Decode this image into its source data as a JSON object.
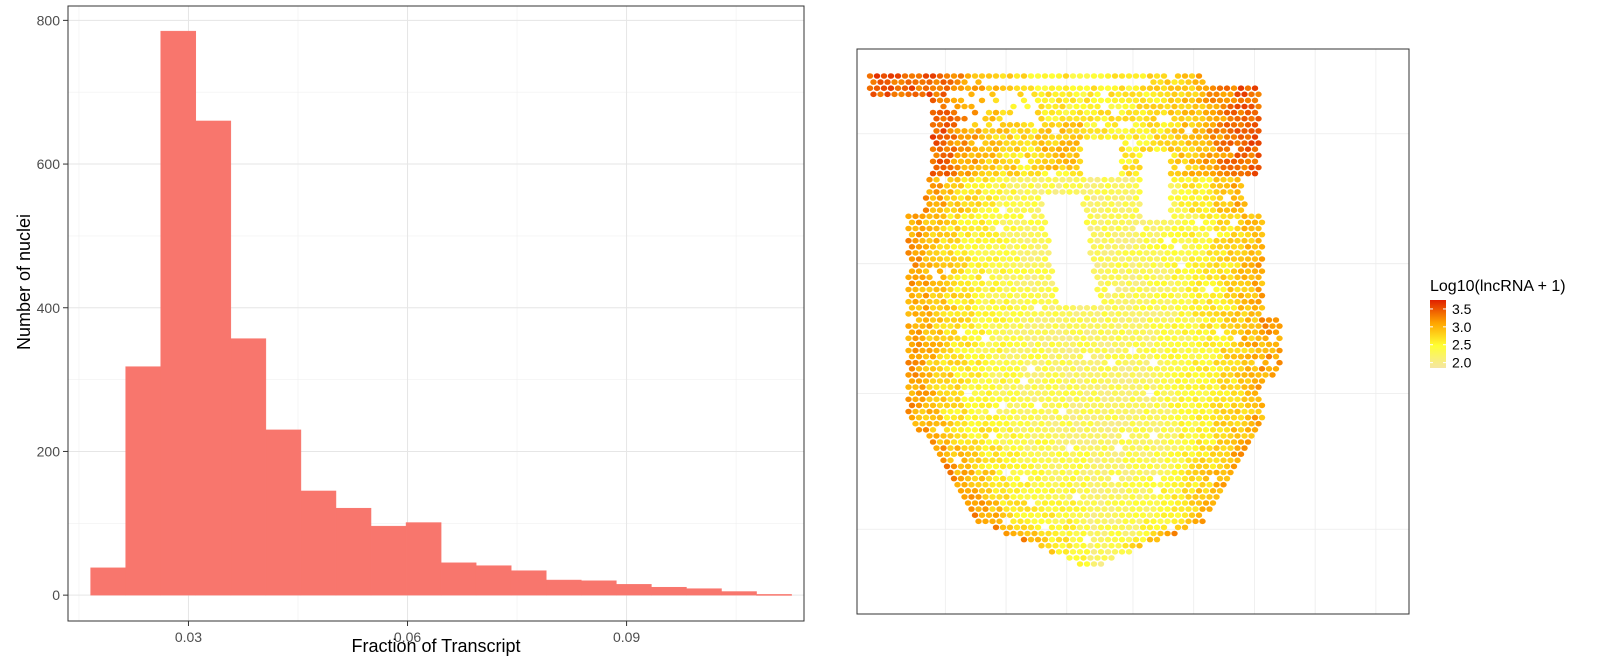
{
  "chart_data": [
    {
      "type": "bar",
      "subtype": "histogram",
      "xlabel": "Fraction of Transcript",
      "ylabel": "Number of nuclei",
      "xlim": [
        0.0135,
        0.1143
      ],
      "ylim": [
        -36,
        820
      ],
      "x_ticks": [
        0.03,
        0.06,
        0.09
      ],
      "x_tick_labels": [
        "0.03",
        "0.06",
        "0.09"
      ],
      "y_ticks": [
        0,
        200,
        400,
        600,
        800
      ],
      "y_tick_labels": [
        "0",
        "200",
        "400",
        "600",
        "800"
      ],
      "grid": true,
      "bar_color": "#F8766D",
      "bins": [
        {
          "x0": 0.0166,
          "x1": 0.0214,
          "count": 38
        },
        {
          "x0": 0.0214,
          "x1": 0.0262,
          "count": 318
        },
        {
          "x0": 0.0262,
          "x1": 0.031,
          "count": 785
        },
        {
          "x0": 0.031,
          "x1": 0.0358,
          "count": 660
        },
        {
          "x0": 0.0358,
          "x1": 0.0406,
          "count": 357
        },
        {
          "x0": 0.0406,
          "x1": 0.0454,
          "count": 230
        },
        {
          "x0": 0.0454,
          "x1": 0.0502,
          "count": 145
        },
        {
          "x0": 0.0502,
          "x1": 0.055,
          "count": 121
        },
        {
          "x0": 0.055,
          "x1": 0.0598,
          "count": 96
        },
        {
          "x0": 0.0598,
          "x1": 0.0646,
          "count": 101
        },
        {
          "x0": 0.0646,
          "x1": 0.0694,
          "count": 45
        },
        {
          "x0": 0.0694,
          "x1": 0.0742,
          "count": 41
        },
        {
          "x0": 0.0742,
          "x1": 0.079,
          "count": 34
        },
        {
          "x0": 0.079,
          "x1": 0.0838,
          "count": 21
        },
        {
          "x0": 0.0838,
          "x1": 0.0886,
          "count": 20
        },
        {
          "x0": 0.0886,
          "x1": 0.0934,
          "count": 15
        },
        {
          "x0": 0.0934,
          "x1": 0.0982,
          "count": 11
        },
        {
          "x0": 0.0982,
          "x1": 0.103,
          "count": 9
        },
        {
          "x0": 0.103,
          "x1": 0.1078,
          "count": 5
        },
        {
          "x0": 0.1078,
          "x1": 0.1126,
          "count": 1
        }
      ]
    },
    {
      "type": "heatmap",
      "subtype": "spatial-spot-map",
      "legend_title": "Log10(lncRNA + 1)",
      "legend_position": "right",
      "legend_ticks": [
        3.5,
        3.0,
        2.5,
        2.0
      ],
      "legend_tick_labels": [
        "3.5",
        "3.0",
        "2.5",
        "2.0"
      ],
      "value_range": [
        1.85,
        3.75
      ],
      "color_scale": [
        "#F5E6A3",
        "#FFFF33",
        "#FFA500",
        "#E02000"
      ],
      "grid": true,
      "axis_labels_shown": false
    }
  ]
}
